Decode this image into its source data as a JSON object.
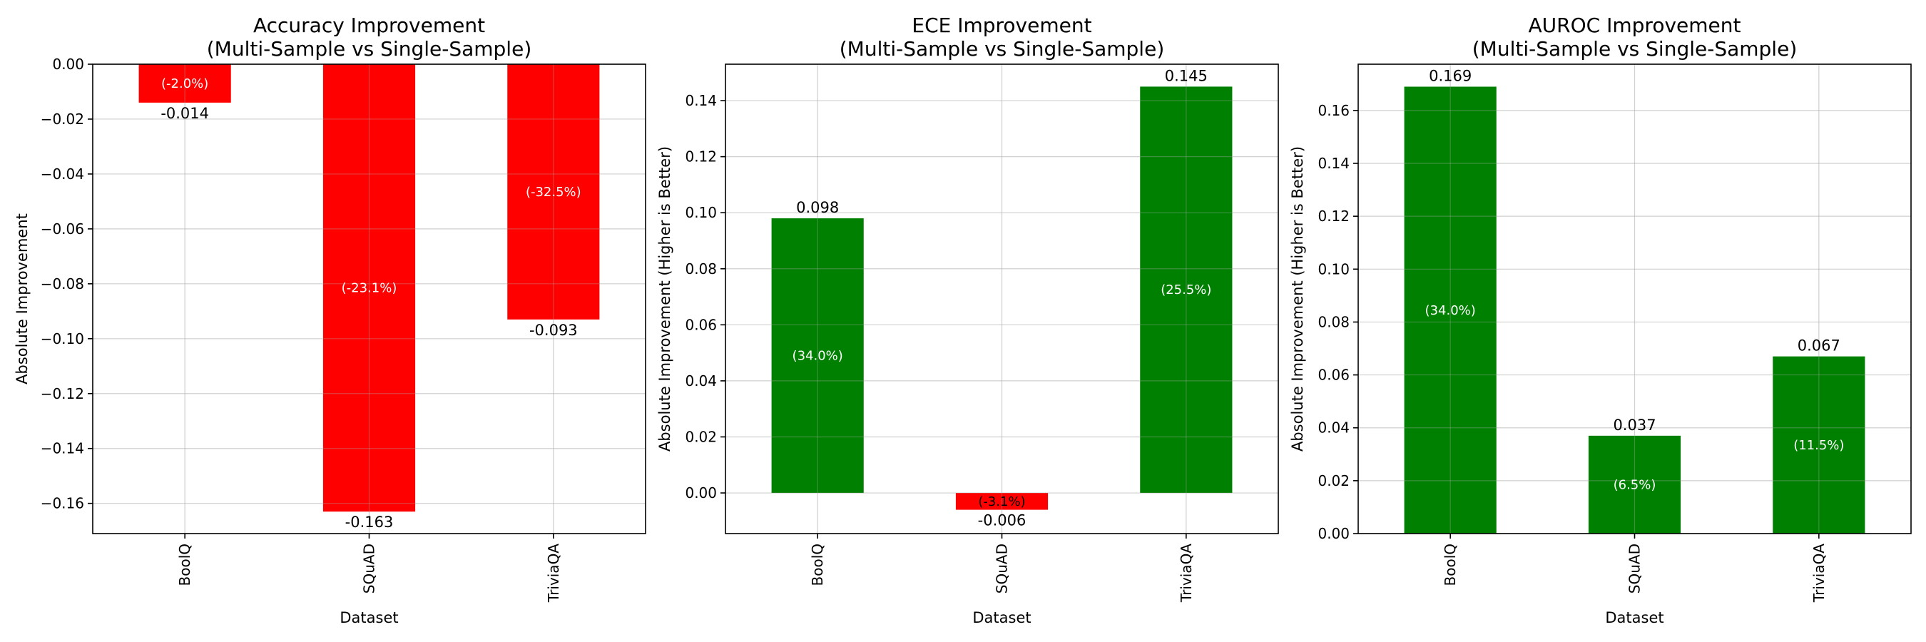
{
  "colors": {
    "positive": "#008000",
    "negative": "#ff0000",
    "pct_on_positive": "#ffffff",
    "pct_on_negative_small": "#000000",
    "pct_on_negative_large": "#ffffff"
  },
  "chart_data": [
    {
      "type": "bar",
      "title": "Accuracy Improvement",
      "subtitle": "(Multi-Sample vs Single-Sample)",
      "xlabel": "Dataset",
      "ylabel": "Absolute Improvement",
      "categories": [
        "BoolQ",
        "SQuAD",
        "TriviaQA"
      ],
      "values": [
        -0.014,
        -0.163,
        -0.093
      ],
      "value_labels": [
        "-0.014",
        "-0.163",
        "-0.093"
      ],
      "percent_labels": [
        "(-2.0%)",
        "(-23.1%)",
        "(-32.5%)"
      ],
      "ylim": [
        -0.171,
        0.0
      ],
      "yticks": [
        0.0,
        -0.02,
        -0.04,
        -0.06,
        -0.08,
        -0.1,
        -0.12,
        -0.14,
        -0.16
      ],
      "ytick_labels": [
        "0.00",
        "−0.02",
        "−0.04",
        "−0.06",
        "−0.08",
        "−0.10",
        "−0.12",
        "−0.14",
        "−0.16"
      ],
      "grid": true
    },
    {
      "type": "bar",
      "title": "ECE Improvement",
      "subtitle": "(Multi-Sample vs Single-Sample)",
      "xlabel": "Dataset",
      "ylabel": "Absolute Improvement (Higher is Better)",
      "categories": [
        "BoolQ",
        "SQuAD",
        "TriviaQA"
      ],
      "values": [
        0.098,
        -0.006,
        0.145
      ],
      "value_labels": [
        "0.098",
        "-0.006",
        "0.145"
      ],
      "percent_labels": [
        "(34.0%)",
        "(-3.1%)",
        "(25.5%)"
      ],
      "ylim": [
        -0.0145,
        0.153
      ],
      "yticks": [
        0.0,
        0.02,
        0.04,
        0.06,
        0.08,
        0.1,
        0.12,
        0.14
      ],
      "ytick_labels": [
        "0.00",
        "0.02",
        "0.04",
        "0.06",
        "0.08",
        "0.10",
        "0.12",
        "0.14"
      ],
      "grid": true
    },
    {
      "type": "bar",
      "title": "AUROC Improvement",
      "subtitle": "(Multi-Sample vs Single-Sample)",
      "xlabel": "Dataset",
      "ylabel": "Absolute Improvement (Higher is Better)",
      "categories": [
        "BoolQ",
        "SQuAD",
        "TriviaQA"
      ],
      "values": [
        0.169,
        0.037,
        0.067
      ],
      "value_labels": [
        "0.169",
        "0.037",
        "0.067"
      ],
      "percent_labels": [
        "(34.0%)",
        "(6.5%)",
        "(11.5%)"
      ],
      "ylim": [
        0.0,
        0.1775
      ],
      "yticks": [
        0.0,
        0.02,
        0.04,
        0.06,
        0.08,
        0.1,
        0.12,
        0.14,
        0.16
      ],
      "ytick_labels": [
        "0.00",
        "0.02",
        "0.04",
        "0.06",
        "0.08",
        "0.10",
        "0.12",
        "0.14",
        "0.16"
      ],
      "grid": true
    }
  ]
}
